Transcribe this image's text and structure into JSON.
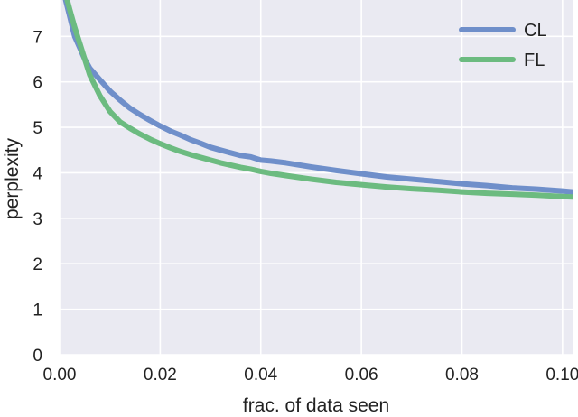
{
  "chart_data": {
    "type": "line",
    "title": "",
    "xlabel": "frac. of data seen",
    "ylabel": "perplexity",
    "xlim": [
      0,
      0.102
    ],
    "ylim": [
      0,
      7.8
    ],
    "x_ticks": [
      0,
      0.02,
      0.04,
      0.06,
      0.08,
      0.1
    ],
    "x_tick_labels": [
      "0.00",
      "0.02",
      "0.04",
      "0.06",
      "0.08",
      "0.10"
    ],
    "y_ticks": [
      0,
      1,
      2,
      3,
      4,
      5,
      6,
      7
    ],
    "y_tick_labels": [
      "0",
      "1",
      "2",
      "3",
      "4",
      "5",
      "6",
      "7"
    ],
    "grid": true,
    "legend_position": "top-right",
    "series": [
      {
        "name": "CL",
        "color": "#6f8fca",
        "x": [
          0.0012,
          0.002,
          0.003,
          0.004,
          0.005,
          0.006,
          0.008,
          0.01,
          0.012,
          0.014,
          0.016,
          0.018,
          0.02,
          0.022,
          0.024,
          0.026,
          0.028,
          0.03,
          0.032,
          0.034,
          0.036,
          0.038,
          0.04,
          0.042,
          0.045,
          0.05,
          0.055,
          0.06,
          0.065,
          0.07,
          0.075,
          0.08,
          0.085,
          0.09,
          0.095,
          0.1,
          0.102
        ],
        "y": [
          7.8,
          7.45,
          7.0,
          6.75,
          6.5,
          6.3,
          6.05,
          5.8,
          5.6,
          5.42,
          5.28,
          5.15,
          5.03,
          4.92,
          4.83,
          4.73,
          4.65,
          4.56,
          4.5,
          4.44,
          4.38,
          4.35,
          4.28,
          4.26,
          4.22,
          4.13,
          4.05,
          3.98,
          3.91,
          3.86,
          3.81,
          3.76,
          3.72,
          3.67,
          3.64,
          3.6,
          3.58
        ]
      },
      {
        "name": "FL",
        "color": "#6cbb80",
        "x": [
          0.0015,
          0.002,
          0.003,
          0.004,
          0.005,
          0.006,
          0.008,
          0.01,
          0.012,
          0.014,
          0.016,
          0.018,
          0.02,
          0.022,
          0.024,
          0.026,
          0.028,
          0.03,
          0.032,
          0.034,
          0.036,
          0.038,
          0.04,
          0.042,
          0.045,
          0.05,
          0.055,
          0.06,
          0.065,
          0.07,
          0.075,
          0.08,
          0.085,
          0.09,
          0.095,
          0.1,
          0.102
        ],
        "y": [
          7.8,
          7.6,
          7.2,
          6.85,
          6.5,
          6.15,
          5.7,
          5.35,
          5.12,
          4.98,
          4.85,
          4.74,
          4.64,
          4.55,
          4.47,
          4.4,
          4.34,
          4.28,
          4.22,
          4.17,
          4.12,
          4.08,
          4.03,
          3.99,
          3.94,
          3.86,
          3.79,
          3.74,
          3.69,
          3.65,
          3.62,
          3.58,
          3.55,
          3.53,
          3.51,
          3.48,
          3.47
        ]
      }
    ]
  }
}
